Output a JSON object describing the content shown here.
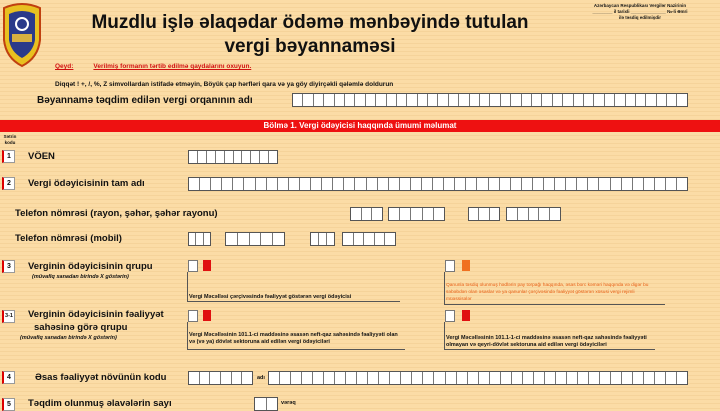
{
  "header": {
    "title_line1": "Muzdlu işlə əlaqədar ödəmə mənbəyində tutulan",
    "title_line2": "vergi bəyannaməsi",
    "approval_line1": "Azərbaycan Respublikası Vergilər Nazirinin",
    "approval_line2": "________ il tarixli ______________ №-li Əmri",
    "approval_line3": "ilə təsdiq edilmişdir",
    "note_label": "Qeyd:",
    "note_text": "Verilmiş formanın tərtib edilmə qaydalarını oxuyun.",
    "warning": "Diqqət ! +, /, %, Z simvollardan istifadə etməyin, Böyük çap hərfləri qara və ya göy diyirçəkli qələmlə doldurun",
    "tax_authority_label": "Bəyannamə təqdim edilən vergi orqanının adı"
  },
  "colors": {
    "background": "#fbdca6",
    "section_bar": "#ee1111",
    "marker_red": "#e01010",
    "marker_orange": "#f07020"
  },
  "section1": {
    "title": "Bölmə 1.  Vergi ödəyicisi haqqında ümumi məlumat",
    "row_code_header": "Sətrin kodu",
    "rows": {
      "r1": {
        "code": "1",
        "label": "VÖEN"
      },
      "r2": {
        "code": "2",
        "label": "Vergi ödəyicisinin tam adı"
      },
      "phone": {
        "label": "Telefon nömrəsi (rayon, şəhər, şəhər rayonu)"
      },
      "mobile": {
        "label": "Telefon nömrəsi (mobil)"
      },
      "r3": {
        "code": "3",
        "label": "Verginin ödəyicisinin qrupu",
        "hint": "(müvafiq xanadan birində X göstərin)",
        "option1": "Vergi Məcəlləsi çərçivəsində fəaliyyət göstərən vergi ödəyicisi",
        "option2": "Qanunla təsdiq olunmuş hədlərin pay torpağı haqqında, əsas borc kəməri haqqında və digər bu səbəbdən olan əsaslar və ya qanunlar çərçivəsində fəaliyyət göstərən xüsusi vergi rejimli müəssisələr"
      },
      "r3_1": {
        "code": "3-1",
        "label_line1": "Verginin ödəyicisinin fəaliyyət",
        "label_line2": "sahəsinə görə qrupu",
        "hint": "(müvafiq xanadan birində X göstərin)",
        "option1": "Vergi Məcəlləsinin 101.1-ci maddəsinə əsasən neft-qaz sahəsində fəaliyyəti olan və (və ya) dövlət sektoruna aid edilən vergi ödəyiciləri",
        "option2": "Vergi Məcəlləsinin 101.1-1-ci maddəsinə əsasən neft-qaz sahəsində fəaliyyəti olmayan və qeyri-dövlət sektoruna aid edilən vergi ödəyiciləri"
      },
      "r4": {
        "code": "4",
        "label": "Əsas fəaliyyət növünün kodu",
        "name_label": "adı"
      },
      "r5": {
        "code": "5",
        "label": "Təqdim olunmuş əlavələrin sayı",
        "unit": "vərəq"
      }
    }
  }
}
